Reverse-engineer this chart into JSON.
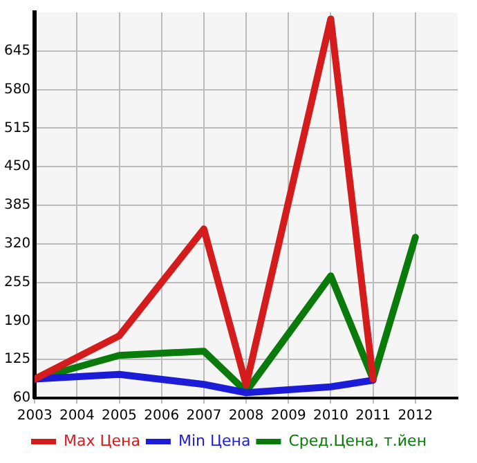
{
  "chart_data": {
    "type": "line",
    "x": [
      2003,
      2005,
      2007,
      2008,
      2010,
      2011,
      2012
    ],
    "series": [
      {
        "name": "Max Цена",
        "color": "#d41c1c",
        "values": [
          92,
          165,
          345,
          82,
          699,
          92,
          null
        ]
      },
      {
        "name": "Min Цена",
        "color": "#1c1cd8",
        "values": [
          92,
          100,
          83,
          69,
          79,
          90,
          null
        ]
      },
      {
        "name": "Сред.Цена, т.йен",
        "color": "#0a7a0a",
        "values": [
          92,
          132,
          139,
          71,
          266,
          92,
          331
        ]
      }
    ],
    "xlim": [
      2003,
      2013
    ],
    "xticks": [
      2003,
      2004,
      2005,
      2006,
      2007,
      2008,
      2009,
      2010,
      2011,
      2012
    ],
    "ylim": [
      60,
      710
    ],
    "yticks": [
      60,
      125,
      190,
      255,
      320,
      385,
      450,
      515,
      580,
      645
    ],
    "grid": true,
    "legend": "bottom",
    "marker": "none",
    "line_style": "solid"
  }
}
